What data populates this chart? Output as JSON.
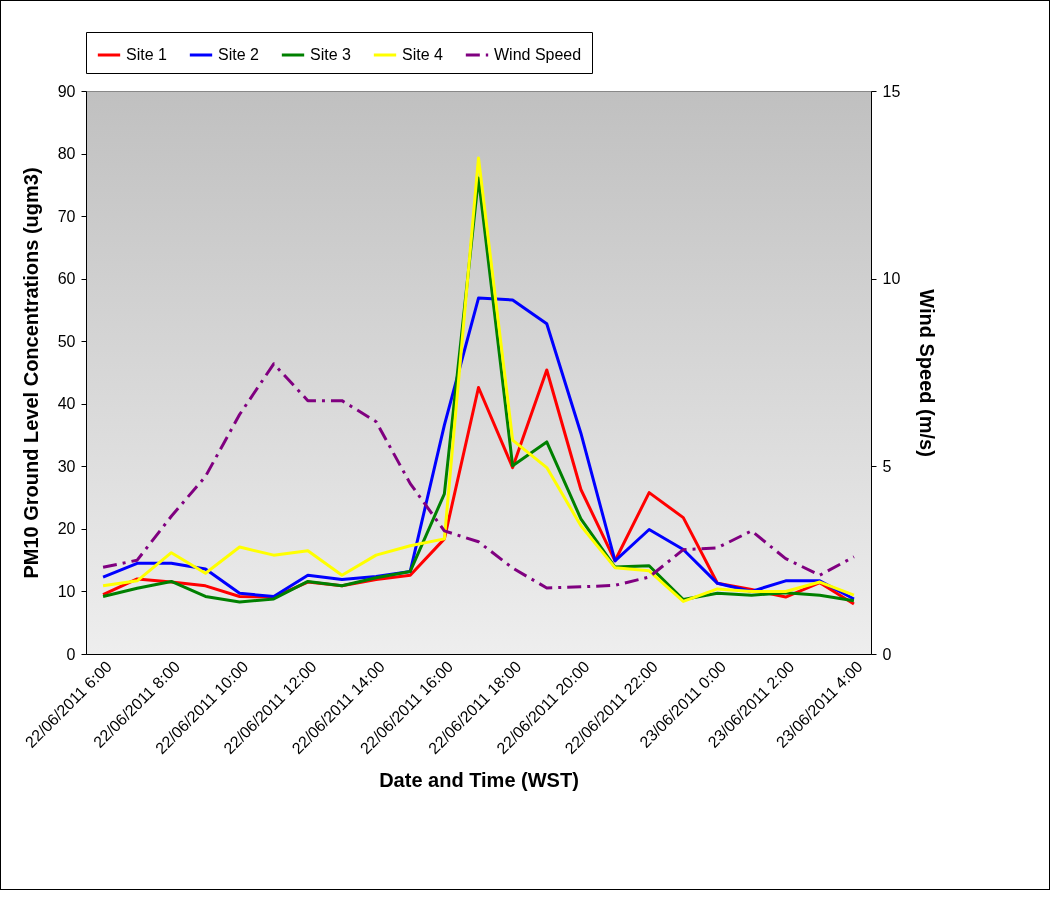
{
  "chart_data": {
    "type": "line",
    "xlabel": "Date and Time (WST)",
    "ylabel": "PM10 Ground Level Concentrations (ugm3)",
    "y2label": "Wind Speed (m/s)",
    "categories": [
      "22/06/2011 6:00",
      null,
      "22/06/2011 8:00",
      null,
      "22/06/2011 10:00",
      null,
      "22/06/2011 12:00",
      null,
      "22/06/2011 14:00",
      null,
      "22/06/2011 16:00",
      null,
      "22/06/2011 18:00",
      null,
      "22/06/2011 20:00",
      null,
      "22/06/2011 22:00",
      null,
      "23/06/2011 0:00",
      null,
      "23/06/2011 2:00",
      null,
      "23/06/2011 4:00"
    ],
    "series": [
      {
        "name": "Site 1",
        "color": "#ff0000",
        "values": [
          9.5,
          12.0,
          11.5,
          10.9,
          9.2,
          9.1,
          11.5,
          10.9,
          11.9,
          12.6,
          18.4,
          42.6,
          29.8,
          45.4,
          26.3,
          14.9,
          25.8,
          21.8,
          11.3,
          10.3,
          9.1,
          11.4,
          8.0
        ]
      },
      {
        "name": "Site 2",
        "color": "#0000ff",
        "values": [
          12.3,
          14.5,
          14.5,
          13.6,
          9.7,
          9.2,
          12.6,
          11.9,
          12.4,
          13.2,
          36.6,
          56.9,
          56.6,
          52.8,
          35.3,
          14.9,
          19.9,
          16.7,
          11.3,
          10.0,
          11.7,
          11.7,
          8.8
        ]
      },
      {
        "name": "Site 3",
        "color": "#008000",
        "values": [
          9.2,
          10.5,
          11.6,
          9.2,
          8.3,
          8.8,
          11.6,
          10.9,
          12.2,
          13.2,
          25.6,
          76.1,
          30.1,
          33.9,
          21.6,
          13.9,
          14.1,
          8.7,
          9.7,
          9.4,
          9.8,
          9.4,
          8.5
        ]
      },
      {
        "name": "Site 4",
        "color": "#ffff00",
        "values": [
          10.9,
          11.7,
          16.2,
          12.9,
          17.1,
          15.8,
          16.5,
          12.6,
          15.8,
          17.3,
          18.4,
          79.3,
          34.2,
          29.8,
          20.5,
          13.8,
          13.3,
          8.4,
          10.4,
          10.0,
          10.0,
          11.5,
          9.4
        ]
      },
      {
        "name": "Wind Speed",
        "color": "#800080",
        "axis": "y2",
        "line_style": "dashdot",
        "values": [
          2.31,
          2.5,
          3.67,
          4.73,
          6.38,
          7.73,
          6.75,
          6.75,
          6.19,
          4.54,
          3.28,
          2.99,
          2.29,
          1.76,
          1.79,
          1.83,
          2.05,
          2.78,
          2.83,
          3.28,
          2.54,
          2.1,
          2.59
        ]
      }
    ],
    "ylim": [
      0,
      90
    ],
    "yticks": [
      0,
      10,
      20,
      30,
      40,
      50,
      60,
      70,
      80,
      90
    ],
    "y2lim": [
      0,
      15
    ],
    "y2ticks": [
      0,
      5,
      10,
      15
    ],
    "line_style": "solid",
    "marker": "none",
    "grid": false,
    "legend": "top"
  }
}
